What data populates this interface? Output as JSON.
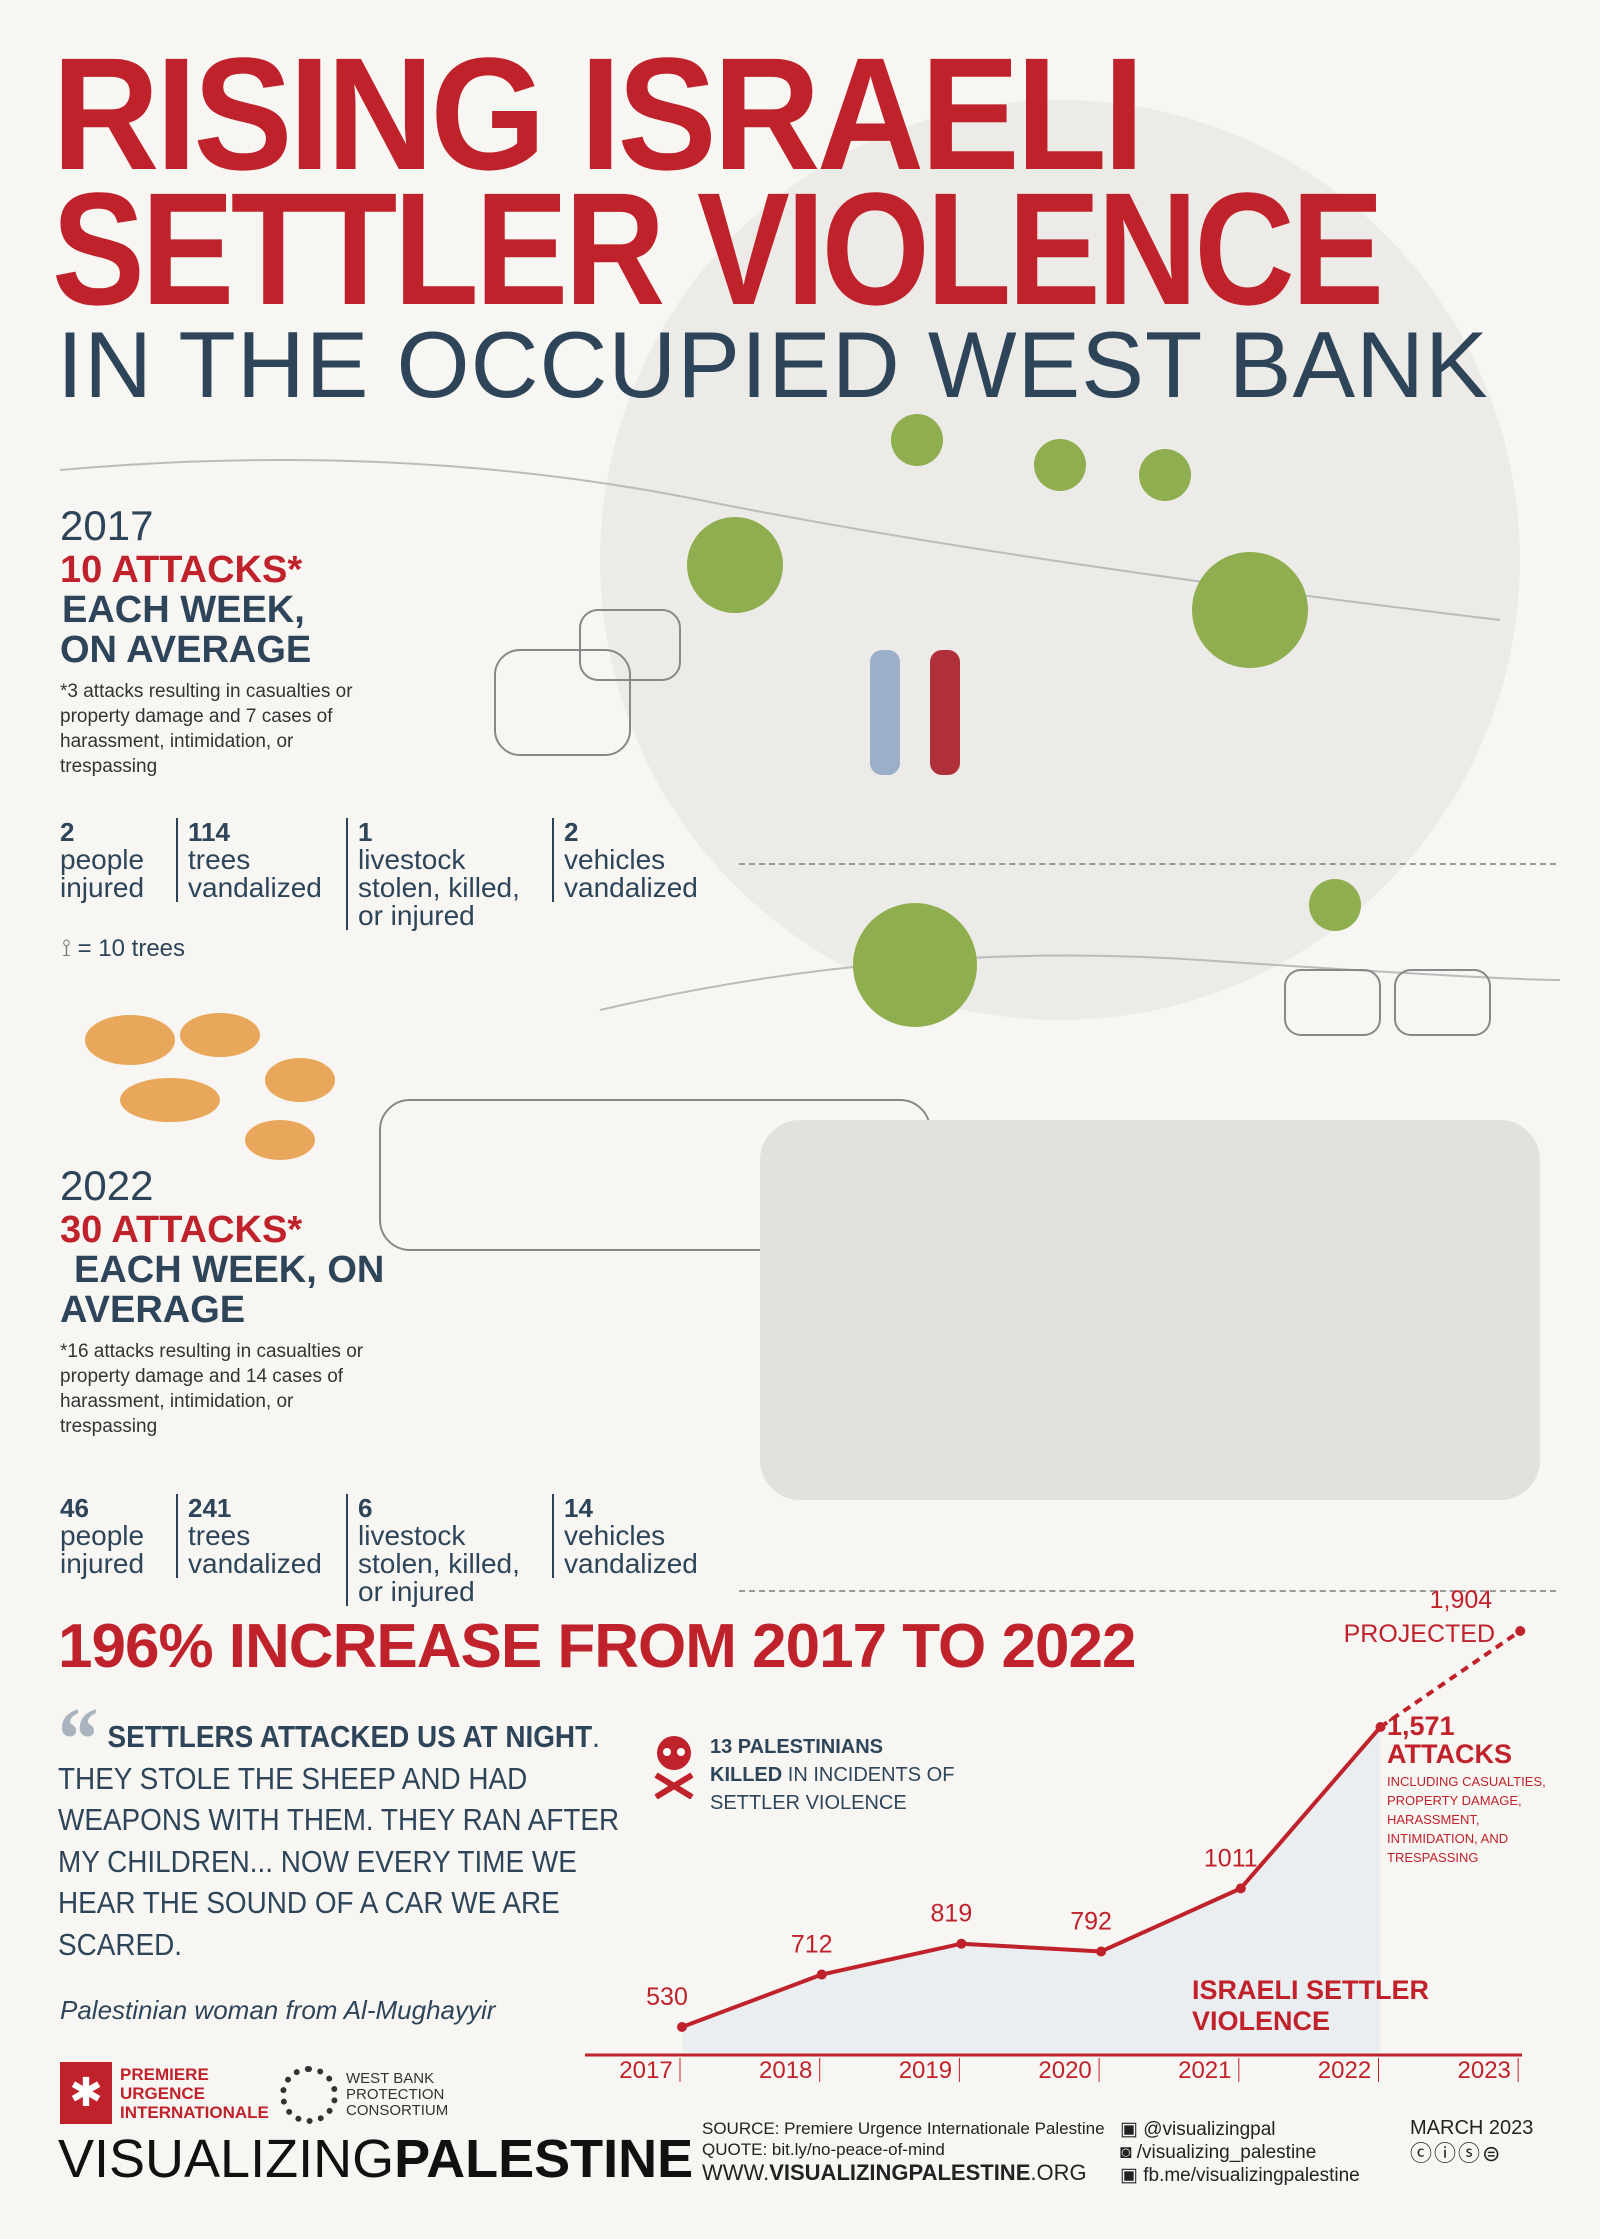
{
  "title": {
    "line1": "RISING ISRAELI",
    "line2": "SETTLER VIOLENCE",
    "line3": "IN THE OCCUPIED WEST BANK"
  },
  "colors": {
    "accent": "#c0222c",
    "navy": "#2d4459",
    "tree": "#7fa047"
  },
  "section_2017": {
    "year": "2017",
    "attacks": "10 ATTACKS*",
    "each_week_1": "EACH WEEK,",
    "each_week_2": "ON AVERAGE",
    "note": "*3 attacks resulting in casualties or property damage and 7 cases of harassment, intimidation, or trespassing",
    "stats": [
      {
        "value": "2",
        "label": "people injured"
      },
      {
        "value": "114",
        "label": "trees vandalized"
      },
      {
        "value": "1",
        "label": "livestock stolen, killed, or injured"
      },
      {
        "value": "2",
        "label": "vehicles vandalized"
      }
    ]
  },
  "legend": {
    "icon": "tree-stump-icon",
    "text": "= 10 trees"
  },
  "section_2022": {
    "year": "2022",
    "attacks": "30 ATTACKS*",
    "each_week_1": "EACH WEEK, ON",
    "each_week_2": "AVERAGE",
    "note": "*16 attacks resulting in casualties or property damage and 14 cases of harassment, intimidation, or trespassing",
    "stats": [
      {
        "value": "46",
        "label": "people injured"
      },
      {
        "value": "241",
        "label": "trees vandalized"
      },
      {
        "value": "6",
        "label": "livestock stolen, killed, or injured"
      },
      {
        "value": "14",
        "label": "vehicles vandalized"
      }
    ]
  },
  "increase_headline": "196% INCREASE FROM 2017 TO 2022",
  "quote": {
    "bold": "SETTLERS ATTACKED US AT NIGHT",
    "rest": ". THEY STOLE THE SHEEP AND HAD WEAPONS WITH THEM. THEY RAN AFTER MY CHILDREN... NOW EVERY TIME WE HEAR THE SOUND OF A CAR WE ARE SCARED.",
    "attribution": "Palestinian woman from Al-Mughayyir"
  },
  "killed": {
    "icon": "skull-crossbones-icon",
    "bold1": "13 PALESTINIANS",
    "bold2": "KILLED",
    "rest1": " IN INCIDENTS OF",
    "rest2": "SETTLER VIOLENCE"
  },
  "chart_data": {
    "type": "line",
    "categories": [
      "2017",
      "2018",
      "2019",
      "2020",
      "2021",
      "2022",
      "2023"
    ],
    "values": [
      530,
      712,
      819,
      792,
      1011,
      1571,
      1904
    ],
    "data_labels": [
      "530",
      "712",
      "819",
      "792",
      "1011",
      "1,571",
      "1,904"
    ],
    "projected_from": "2022",
    "projected_label": "PROJECTED",
    "series_label": "ISRAELI SETTLER VIOLENCE",
    "annotation": {
      "value": "1,571",
      "title": "ATTACKS",
      "text": "INCLUDING CASUALTIES, PROPERTY DAMAGE, HARASSMENT, INTIMIDATION, AND TRESPASSING"
    }
  },
  "footer": {
    "logo1": "PREMIERE URGENCE INTERNATIONALE",
    "logo2": "WEST BANK PROTECTION CONSORTIUM",
    "brand_light": "VISUALIZING",
    "brand_bold": "PALESTINE",
    "source": "SOURCE: Premiere Urgence Internationale Palestine",
    "quote_src": "QUOTE: bit.ly/no-peace-of-mind",
    "web_pre": "WWW.",
    "web_bold": "VISUALIZINGPALESTINE",
    "web_post": ".ORG",
    "twitter": "@visualizingpal",
    "instagram": "/visualizing_palestine",
    "facebook": "fb.me/visualizingpalestine",
    "date": "MARCH 2023",
    "license": "CC BY-NC-ND"
  }
}
